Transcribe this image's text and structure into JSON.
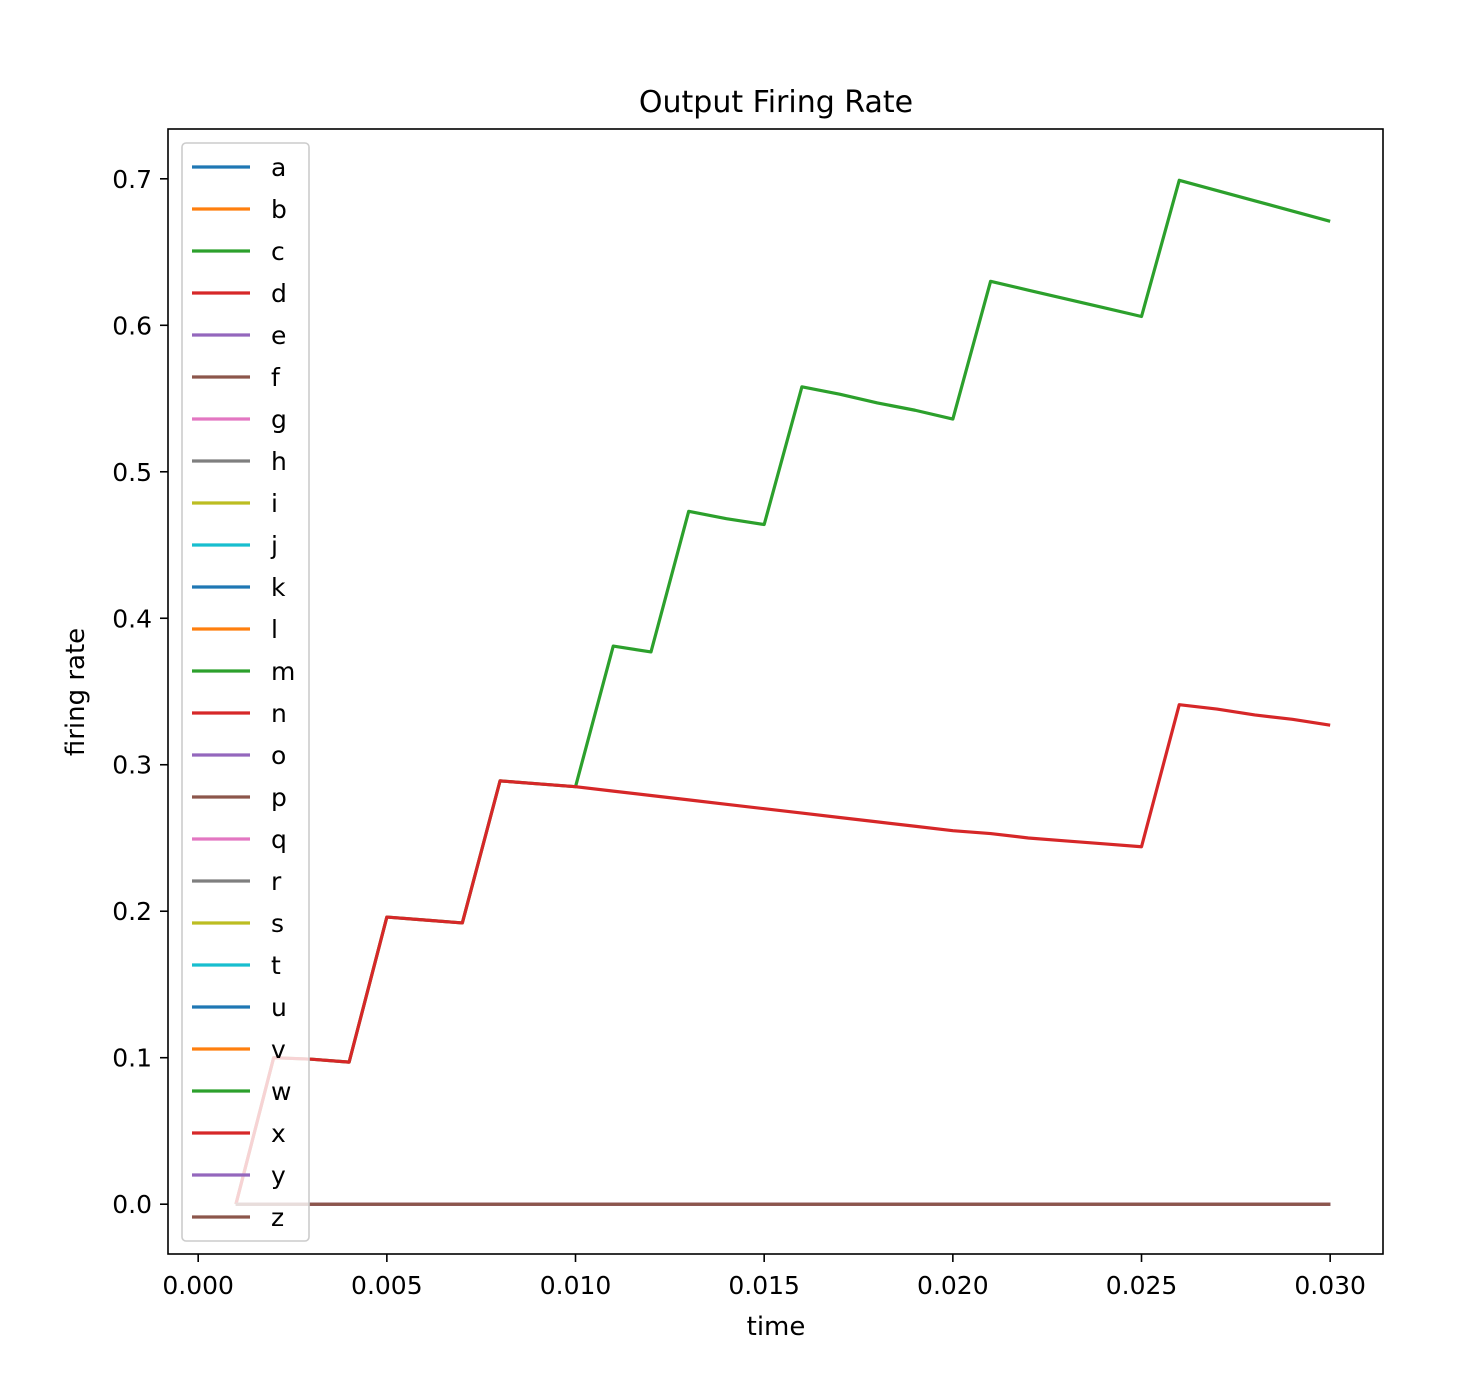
{
  "chart_data": {
    "type": "line",
    "title": "Output Firing Rate",
    "xlabel": "time",
    "ylabel": "firing rate",
    "xlim": [
      -0.0008,
      0.0314
    ],
    "ylim": [
      -0.034,
      0.734
    ],
    "xticks": [
      0.0,
      0.005,
      0.01,
      0.015,
      0.02,
      0.025,
      0.03
    ],
    "xtick_labels": [
      "0.000",
      "0.005",
      "0.010",
      "0.015",
      "0.020",
      "0.025",
      "0.030"
    ],
    "yticks": [
      0.0,
      0.1,
      0.2,
      0.3,
      0.4,
      0.5,
      0.6,
      0.7
    ],
    "ytick_labels": [
      "0.0",
      "0.1",
      "0.2",
      "0.3",
      "0.4",
      "0.5",
      "0.6",
      "0.7"
    ],
    "grid": false,
    "legend_position": "upper-left",
    "x": [
      0.001,
      0.002,
      0.003,
      0.004,
      0.005,
      0.006,
      0.007,
      0.008,
      0.009,
      0.01,
      0.011,
      0.012,
      0.013,
      0.014,
      0.015,
      0.016,
      0.017,
      0.018,
      0.019,
      0.02,
      0.021,
      0.022,
      0.023,
      0.024,
      0.025,
      0.026,
      0.027,
      0.028,
      0.029,
      0.03
    ],
    "series": [
      {
        "name": "a",
        "color": "#1f77b4",
        "values": [
          0,
          0,
          0,
          0,
          0,
          0,
          0,
          0,
          0,
          0,
          0,
          0,
          0,
          0,
          0,
          0,
          0,
          0,
          0,
          0,
          0,
          0,
          0,
          0,
          0,
          0,
          0,
          0,
          0,
          0
        ]
      },
      {
        "name": "b",
        "color": "#ff7f0e",
        "values": [
          0,
          0,
          0,
          0,
          0,
          0,
          0,
          0,
          0,
          0,
          0,
          0,
          0,
          0,
          0,
          0,
          0,
          0,
          0,
          0,
          0,
          0,
          0,
          0,
          0,
          0,
          0,
          0,
          0,
          0
        ]
      },
      {
        "name": "c",
        "color": "#2ca02c",
        "values": [
          0,
          0,
          0,
          0,
          0,
          0,
          0,
          0,
          0,
          0,
          0,
          0,
          0,
          0,
          0,
          0,
          0,
          0,
          0,
          0,
          0,
          0,
          0,
          0,
          0,
          0,
          0,
          0,
          0,
          0
        ]
      },
      {
        "name": "d",
        "color": "#d62728",
        "values": [
          0,
          0,
          0,
          0,
          0,
          0,
          0,
          0,
          0,
          0,
          0,
          0,
          0,
          0,
          0,
          0,
          0,
          0,
          0,
          0,
          0,
          0,
          0,
          0,
          0,
          0,
          0,
          0,
          0,
          0
        ]
      },
      {
        "name": "e",
        "color": "#9467bd",
        "values": [
          0,
          0,
          0,
          0,
          0,
          0,
          0,
          0,
          0,
          0,
          0,
          0,
          0,
          0,
          0,
          0,
          0,
          0,
          0,
          0,
          0,
          0,
          0,
          0,
          0,
          0,
          0,
          0,
          0,
          0
        ]
      },
      {
        "name": "f",
        "color": "#8c564b",
        "values": [
          0,
          0,
          0,
          0,
          0,
          0,
          0,
          0,
          0,
          0,
          0,
          0,
          0,
          0,
          0,
          0,
          0,
          0,
          0,
          0,
          0,
          0,
          0,
          0,
          0,
          0,
          0,
          0,
          0,
          0
        ]
      },
      {
        "name": "g",
        "color": "#e377c2",
        "values": [
          0,
          0,
          0,
          0,
          0,
          0,
          0,
          0,
          0,
          0,
          0,
          0,
          0,
          0,
          0,
          0,
          0,
          0,
          0,
          0,
          0,
          0,
          0,
          0,
          0,
          0,
          0,
          0,
          0,
          0
        ]
      },
      {
        "name": "h",
        "color": "#7f7f7f",
        "values": [
          0,
          0,
          0,
          0,
          0,
          0,
          0,
          0,
          0,
          0,
          0,
          0,
          0,
          0,
          0,
          0,
          0,
          0,
          0,
          0,
          0,
          0,
          0,
          0,
          0,
          0,
          0,
          0,
          0,
          0
        ]
      },
      {
        "name": "i",
        "color": "#bcbd22",
        "values": [
          0,
          0,
          0,
          0,
          0,
          0,
          0,
          0,
          0,
          0,
          0,
          0,
          0,
          0,
          0,
          0,
          0,
          0,
          0,
          0,
          0,
          0,
          0,
          0,
          0,
          0,
          0,
          0,
          0,
          0
        ]
      },
      {
        "name": "j",
        "color": "#17becf",
        "values": [
          0,
          0,
          0,
          0,
          0,
          0,
          0,
          0,
          0,
          0,
          0,
          0,
          0,
          0,
          0,
          0,
          0,
          0,
          0,
          0,
          0,
          0,
          0,
          0,
          0,
          0,
          0,
          0,
          0,
          0
        ]
      },
      {
        "name": "k",
        "color": "#1f77b4",
        "values": [
          0,
          0,
          0,
          0,
          0,
          0,
          0,
          0,
          0,
          0,
          0,
          0,
          0,
          0,
          0,
          0,
          0,
          0,
          0,
          0,
          0,
          0,
          0,
          0,
          0,
          0,
          0,
          0,
          0,
          0
        ]
      },
      {
        "name": "l",
        "color": "#ff7f0e",
        "values": [
          0,
          0,
          0,
          0,
          0,
          0,
          0,
          0,
          0,
          0,
          0,
          0,
          0,
          0,
          0,
          0,
          0,
          0,
          0,
          0,
          0,
          0,
          0,
          0,
          0,
          0,
          0,
          0,
          0,
          0
        ]
      },
      {
        "name": "m",
        "color": "#2ca02c",
        "values": [
          0,
          0.1,
          0.099,
          0.097,
          0.196,
          0.194,
          0.192,
          0.289,
          0.287,
          0.285,
          0.381,
          0.377,
          0.473,
          0.468,
          0.464,
          0.558,
          0.553,
          0.547,
          0.542,
          0.536,
          0.63,
          0.624,
          0.618,
          0.612,
          0.606,
          0.699,
          0.692,
          0.685,
          0.678,
          0.671
        ]
      },
      {
        "name": "n",
        "color": "#d62728",
        "values": [
          0,
          0.1,
          0.099,
          0.097,
          0.196,
          0.194,
          0.192,
          0.289,
          0.287,
          0.285,
          0.282,
          0.279,
          0.276,
          0.273,
          0.27,
          0.267,
          0.264,
          0.261,
          0.258,
          0.255,
          0.253,
          0.25,
          0.248,
          0.246,
          0.244,
          0.341,
          0.338,
          0.334,
          0.331,
          0.327
        ]
      },
      {
        "name": "o",
        "color": "#9467bd",
        "values": [
          0,
          0,
          0,
          0,
          0,
          0,
          0,
          0,
          0,
          0,
          0,
          0,
          0,
          0,
          0,
          0,
          0,
          0,
          0,
          0,
          0,
          0,
          0,
          0,
          0,
          0,
          0,
          0,
          0,
          0
        ]
      },
      {
        "name": "p",
        "color": "#8c564b",
        "values": [
          0,
          0,
          0,
          0,
          0,
          0,
          0,
          0,
          0,
          0,
          0,
          0,
          0,
          0,
          0,
          0,
          0,
          0,
          0,
          0,
          0,
          0,
          0,
          0,
          0,
          0,
          0,
          0,
          0,
          0
        ]
      },
      {
        "name": "q",
        "color": "#e377c2",
        "values": [
          0,
          0,
          0,
          0,
          0,
          0,
          0,
          0,
          0,
          0,
          0,
          0,
          0,
          0,
          0,
          0,
          0,
          0,
          0,
          0,
          0,
          0,
          0,
          0,
          0,
          0,
          0,
          0,
          0,
          0
        ]
      },
      {
        "name": "r",
        "color": "#7f7f7f",
        "values": [
          0,
          0,
          0,
          0,
          0,
          0,
          0,
          0,
          0,
          0,
          0,
          0,
          0,
          0,
          0,
          0,
          0,
          0,
          0,
          0,
          0,
          0,
          0,
          0,
          0,
          0,
          0,
          0,
          0,
          0
        ]
      },
      {
        "name": "s",
        "color": "#bcbd22",
        "values": [
          0,
          0,
          0,
          0,
          0,
          0,
          0,
          0,
          0,
          0,
          0,
          0,
          0,
          0,
          0,
          0,
          0,
          0,
          0,
          0,
          0,
          0,
          0,
          0,
          0,
          0,
          0,
          0,
          0,
          0
        ]
      },
      {
        "name": "t",
        "color": "#17becf",
        "values": [
          0,
          0,
          0,
          0,
          0,
          0,
          0,
          0,
          0,
          0,
          0,
          0,
          0,
          0,
          0,
          0,
          0,
          0,
          0,
          0,
          0,
          0,
          0,
          0,
          0,
          0,
          0,
          0,
          0,
          0
        ]
      },
      {
        "name": "u",
        "color": "#1f77b4",
        "values": [
          0,
          0,
          0,
          0,
          0,
          0,
          0,
          0,
          0,
          0,
          0,
          0,
          0,
          0,
          0,
          0,
          0,
          0,
          0,
          0,
          0,
          0,
          0,
          0,
          0,
          0,
          0,
          0,
          0,
          0
        ]
      },
      {
        "name": "v",
        "color": "#ff7f0e",
        "values": [
          0,
          0,
          0,
          0,
          0,
          0,
          0,
          0,
          0,
          0,
          0,
          0,
          0,
          0,
          0,
          0,
          0,
          0,
          0,
          0,
          0,
          0,
          0,
          0,
          0,
          0,
          0,
          0,
          0,
          0
        ]
      },
      {
        "name": "w",
        "color": "#2ca02c",
        "values": [
          0,
          0,
          0,
          0,
          0,
          0,
          0,
          0,
          0,
          0,
          0,
          0,
          0,
          0,
          0,
          0,
          0,
          0,
          0,
          0,
          0,
          0,
          0,
          0,
          0,
          0,
          0,
          0,
          0,
          0
        ]
      },
      {
        "name": "x",
        "color": "#d62728",
        "values": [
          0,
          0,
          0,
          0,
          0,
          0,
          0,
          0,
          0,
          0,
          0,
          0,
          0,
          0,
          0,
          0,
          0,
          0,
          0,
          0,
          0,
          0,
          0,
          0,
          0,
          0,
          0,
          0,
          0,
          0
        ]
      },
      {
        "name": "y",
        "color": "#9467bd",
        "values": [
          0,
          0,
          0,
          0,
          0,
          0,
          0,
          0,
          0,
          0,
          0,
          0,
          0,
          0,
          0,
          0,
          0,
          0,
          0,
          0,
          0,
          0,
          0,
          0,
          0,
          0,
          0,
          0,
          0,
          0
        ]
      },
      {
        "name": "z",
        "color": "#8c564b",
        "values": [
          0,
          0,
          0,
          0,
          0,
          0,
          0,
          0,
          0,
          0,
          0,
          0,
          0,
          0,
          0,
          0,
          0,
          0,
          0,
          0,
          0,
          0,
          0,
          0,
          0,
          0,
          0,
          0,
          0,
          0
        ]
      }
    ]
  }
}
